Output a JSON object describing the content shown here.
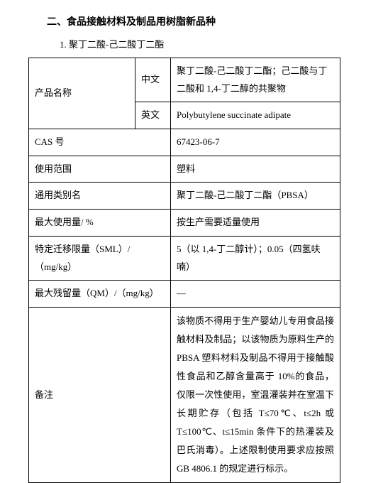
{
  "section_title": "二、食品接触材料及制品用树脂新品种",
  "list_item": "1. 聚丁二酸-己二酸丁二酯",
  "labels": {
    "product_name": "产品名称",
    "cn": "中文",
    "en": "英文",
    "cas": "CAS 号",
    "scope": "使用范围",
    "generic_name": "通用类别名",
    "max_usage": "最大使用量/ %",
    "sml": "特定迁移限量（SML）/（mg/kg）",
    "qm": "最大残留量（QM）/（mg/kg）",
    "remarks": "备注"
  },
  "values": {
    "name_cn": "聚丁二酸-己二酸丁二酯；己二酸与丁二酸和 1,4-丁二醇的共聚物",
    "name_en": "Polybutylene succinate adipate",
    "cas": "67423-06-7",
    "scope": "塑料",
    "generic_name": "聚丁二酸-己二酸丁二酯（PBSA）",
    "max_usage": "按生产需要适量使用",
    "sml": "5（以 1,4-丁二醇计）；0.05（四氢呋喃）",
    "qm": "—",
    "remarks": "该物质不得用于生产婴幼儿专用食品接触材料及制品；以该物质为原料生产的 PBSA 塑料材料及制品不得用于接触酸性食品和乙醇含量高于 10%的食品，仅限一次性使用，室温灌装并在室温下长期贮存（包括 T≤70℃、t≤2h 或 T≤100℃、t≤15min 条件下的热灌装及巴氏消毒）。上述限制使用要求应按照 GB 4806.1 的规定进行标示。"
  }
}
